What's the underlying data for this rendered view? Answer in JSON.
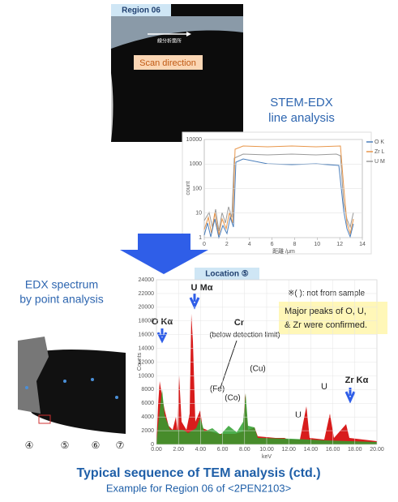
{
  "region_label": "Region 06",
  "scan_note": "線分析箇所",
  "scan_direction": "Scan direction",
  "line_analysis": {
    "title_lines": [
      "STEM-EDX",
      "line analysis"
    ],
    "legend": [
      "O K",
      "Zr L",
      "U M"
    ],
    "colors": [
      "#4a7ebb",
      "#e8964a",
      "#9a9a9a"
    ],
    "y_label": "count",
    "x_label": "距離 /μm",
    "log_y": true,
    "ylim": [
      1,
      10000
    ],
    "yticks": [
      1,
      10,
      100,
      1000,
      10000
    ],
    "xlim": [
      0,
      14
    ],
    "xticks": [
      0,
      2,
      4,
      6,
      8,
      10,
      12,
      14
    ]
  },
  "location_label": "Location ⑤",
  "spectrum_heading": [
    "EDX spectrum",
    "by point analysis"
  ],
  "spectrum": {
    "y_label": "Counts",
    "x_label": "keV",
    "ylim": [
      0,
      24000
    ],
    "yticks": [
      0,
      2000,
      4000,
      6000,
      8000,
      10000,
      12000,
      14000,
      16000,
      18000,
      20000,
      22000,
      24000
    ],
    "xlim": [
      0,
      20
    ],
    "xticks": [
      {
        "value": 0,
        "label": "0.00"
      },
      {
        "value": 2,
        "label": "2.00"
      },
      {
        "value": 4,
        "label": "4.00"
      },
      {
        "value": 6,
        "label": "6.00"
      },
      {
        "value": 8,
        "label": "8.00"
      },
      {
        "value": 10,
        "label": "10.00"
      },
      {
        "value": 12,
        "label": "12.00"
      },
      {
        "value": 14,
        "label": "14.00"
      },
      {
        "value": 16,
        "label": "16.00"
      },
      {
        "value": 18,
        "label": "18.00"
      },
      {
        "value": 20,
        "label": "20.00"
      }
    ],
    "note": "※( ): not from sample",
    "summary": [
      "Major peaks of O, U,",
      "& Zr were confirmed."
    ],
    "annotations": {
      "o": "O Kα",
      "u_m": "U Mα",
      "cr": "Cr",
      "cr_note": "(below detection limit)",
      "cu": "(Cu)",
      "fe": "(Fe)",
      "co": "(Co)",
      "u1": "U",
      "u2": "U",
      "zr": "Zr Kα"
    }
  },
  "points": [
    "④",
    "⑤",
    "⑥",
    "⑦"
  ],
  "caption": {
    "title": "Typical sequence of TEM analysis (ctd.)",
    "subtitle": "Example for Region 06 of <2PEN2103>"
  }
}
